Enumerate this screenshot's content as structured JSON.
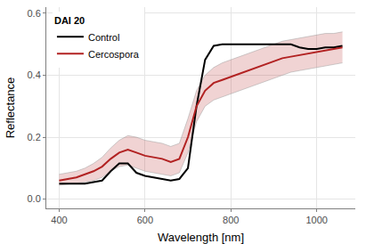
{
  "chart_data": {
    "type": "line",
    "x_label": "Wavelength [nm]",
    "y_label": "Reflectance",
    "legend_title": "DAI 20",
    "legend": "top-left",
    "grid": true,
    "xlim": [
      370,
      1090
    ],
    "xticks": [
      400,
      600,
      800,
      1000
    ],
    "ylim": [
      -0.03,
      0.62
    ],
    "yticks": [
      {
        "value": 0,
        "label": "0.0"
      },
      0.2,
      0.4,
      0.6
    ],
    "x": [
      400,
      420,
      440,
      460,
      480,
      500,
      520,
      540,
      560,
      580,
      600,
      620,
      640,
      660,
      680,
      700,
      720,
      740,
      760,
      780,
      800,
      820,
      840,
      860,
      880,
      900,
      920,
      940,
      960,
      980,
      1000,
      1020,
      1040,
      1060
    ],
    "series": [
      {
        "name": "Control",
        "color": "#000000",
        "values": [
          0.05,
          0.05,
          0.05,
          0.05,
          0.055,
          0.06,
          0.09,
          0.115,
          0.115,
          0.085,
          0.075,
          0.07,
          0.065,
          0.06,
          0.065,
          0.1,
          0.3,
          0.45,
          0.495,
          0.5,
          0.5,
          0.5,
          0.5,
          0.5,
          0.5,
          0.5,
          0.5,
          0.5,
          0.49,
          0.485,
          0.485,
          0.49,
          0.49,
          0.495
        ]
      },
      {
        "name": "Cercospora",
        "color": "#b22222",
        "values": [
          0.06,
          0.065,
          0.07,
          0.08,
          0.09,
          0.105,
          0.13,
          0.15,
          0.16,
          0.15,
          0.14,
          0.135,
          0.13,
          0.12,
          0.13,
          0.2,
          0.3,
          0.35,
          0.375,
          0.385,
          0.395,
          0.405,
          0.415,
          0.425,
          0.435,
          0.445,
          0.455,
          0.46,
          0.465,
          0.47,
          0.475,
          0.48,
          0.485,
          0.49
        ],
        "lower": [
          0.045,
          0.048,
          0.05,
          0.055,
          0.06,
          0.07,
          0.09,
          0.105,
          0.11,
          0.1,
          0.09,
          0.085,
          0.08,
          0.075,
          0.085,
          0.15,
          0.25,
          0.3,
          0.32,
          0.33,
          0.34,
          0.35,
          0.36,
          0.37,
          0.38,
          0.39,
          0.4,
          0.41,
          0.415,
          0.42,
          0.425,
          0.43,
          0.435,
          0.44
        ],
        "upper": [
          0.08,
          0.085,
          0.09,
          0.1,
          0.115,
          0.135,
          0.165,
          0.19,
          0.205,
          0.2,
          0.19,
          0.185,
          0.18,
          0.17,
          0.18,
          0.26,
          0.35,
          0.4,
          0.425,
          0.44,
          0.45,
          0.46,
          0.47,
          0.48,
          0.49,
          0.5,
          0.51,
          0.515,
          0.52,
          0.525,
          0.53,
          0.535,
          0.535,
          0.54
        ]
      }
    ]
  }
}
